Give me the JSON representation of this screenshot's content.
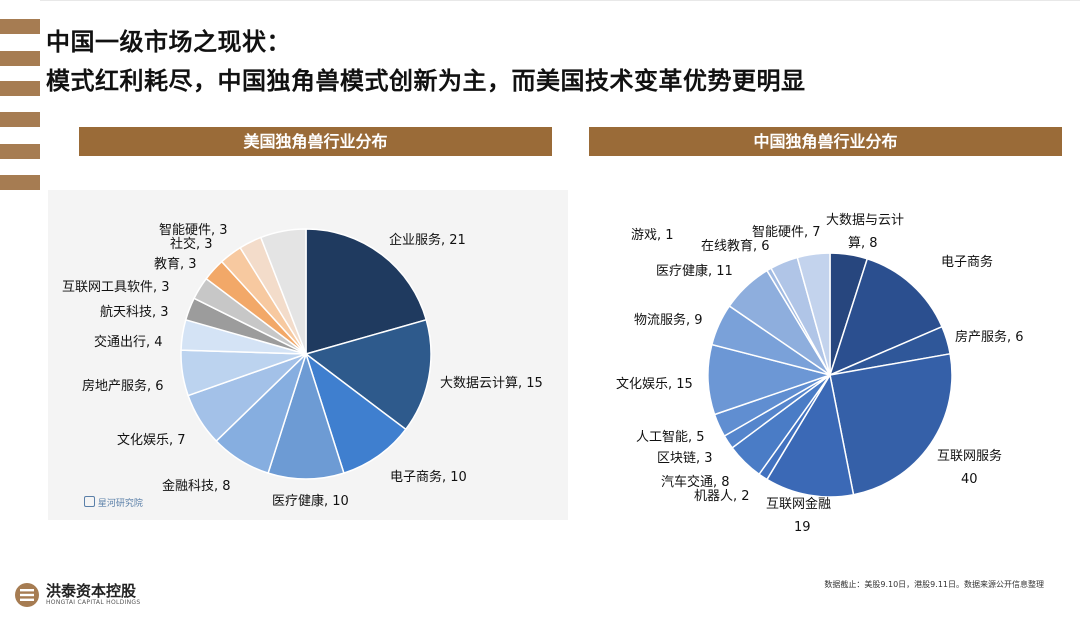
{
  "title_line1": "中国一级市场之现状：",
  "title_line2": "模式红利耗尽，中国独角兽模式创新为主，而美国技术变革优势更明显",
  "footer_note": "数据截止：美股9.10日，港股9.11日。数据来源公开信息整理",
  "logo": {
    "cn": "洪泰资本控股",
    "en": "HONGTAI CAPITAL HOLDINGS"
  },
  "watermark_text": "星河研究院",
  "colors": {
    "accent": "#9a6b38",
    "stripe": "#a67c52"
  },
  "chart_data": [
    {
      "type": "pie",
      "title": "美国独角兽行业分布",
      "slices": [
        {
          "label": "企业服务, 21",
          "value": 21,
          "color": "#1f3a5f"
        },
        {
          "label": "大数据云计算, 15",
          "value": 15,
          "color": "#2e5a8c"
        },
        {
          "label": "电子商务, 10",
          "value": 10,
          "color": "#3f7fcf"
        },
        {
          "label": "医疗健康, 10",
          "value": 10,
          "color": "#6d9bd4"
        },
        {
          "label": "金融科技, 8",
          "value": 8,
          "color": "#86aee0"
        },
        {
          "label": "文化娱乐, 7",
          "value": 7,
          "color": "#a3c1e8"
        },
        {
          "label": "房地产服务, 6",
          "value": 6,
          "color": "#bcd3ef"
        },
        {
          "label": "交通出行, 4",
          "value": 4,
          "color": "#d4e3f5"
        },
        {
          "label": "航天科技, 3",
          "value": 3,
          "color": "#9c9c9c"
        },
        {
          "label": "互联网工具软件, 3",
          "value": 3,
          "color": "#c7c7c7"
        },
        {
          "label": "教育, 3",
          "value": 3,
          "color": "#f2a868"
        },
        {
          "label": "社交, 3",
          "value": 3,
          "color": "#f7c9a0"
        },
        {
          "label": "智能硬件, 3",
          "value": 3,
          "color": "#f3dcca"
        },
        {
          "label": "",
          "value": 6,
          "color": "#e4e4e4"
        }
      ]
    },
    {
      "type": "pie",
      "title": "中国独角兽行业分布",
      "slices": [
        {
          "label": "大数据与云计\n算, 8",
          "value": 8,
          "color": "#27467e"
        },
        {
          "label": "电子商务",
          "value": 22,
          "color": "#2b4f8f"
        },
        {
          "label": "房产服务, 6",
          "value": 6,
          "color": "#2f5799"
        },
        {
          "label": "互联网服务\n40",
          "value": 40,
          "color": "#3560a8"
        },
        {
          "label": "互联网金融\n19",
          "value": 19,
          "color": "#3b69b6"
        },
        {
          "label": "机器人, 2",
          "value": 2,
          "color": "#4272c0"
        },
        {
          "label": "汽车交通, 8",
          "value": 8,
          "color": "#4a7cc6"
        },
        {
          "label": "区块链, 3",
          "value": 3,
          "color": "#5585cc"
        },
        {
          "label": "人工智能, 5",
          "value": 5,
          "color": "#608ed1"
        },
        {
          "label": "文化娱乐, 15",
          "value": 15,
          "color": "#6c97d5"
        },
        {
          "label": "物流服务, 9",
          "value": 9,
          "color": "#7aa1d9"
        },
        {
          "label": "医疗健康, 11",
          "value": 11,
          "color": "#8eaedd"
        },
        {
          "label": "游戏, 1",
          "value": 1,
          "color": "#a0bae2"
        },
        {
          "label": "在线教育, 6",
          "value": 6,
          "color": "#b0c5e7"
        },
        {
          "label": "智能硬件, 7",
          "value": 7,
          "color": "#c3d3ed"
        }
      ]
    }
  ]
}
